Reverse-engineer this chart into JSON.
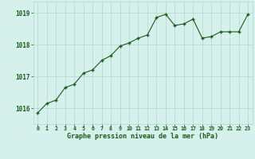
{
  "x": [
    0,
    1,
    2,
    3,
    4,
    5,
    6,
    7,
    8,
    9,
    10,
    11,
    12,
    13,
    14,
    15,
    16,
    17,
    18,
    19,
    20,
    21,
    22,
    23
  ],
  "y": [
    1015.85,
    1016.15,
    1016.25,
    1016.65,
    1016.75,
    1017.1,
    1017.2,
    1017.5,
    1017.65,
    1017.95,
    1018.05,
    1018.2,
    1018.3,
    1018.85,
    1018.95,
    1018.6,
    1018.65,
    1018.8,
    1018.2,
    1018.25,
    1018.4,
    1018.4,
    1018.4,
    1018.95
  ],
  "line_color": "#1a5c1a",
  "marker_color": "#1a5c1a",
  "bg_color": "#d6f0eb",
  "plot_bg_color": "#d6f0eb",
  "grid_color": "#b0d8cc",
  "xlabel": "Graphe pression niveau de la mer (hPa)",
  "xlabel_color": "#1a5c1a",
  "tick_label_color": "#1a5c1a",
  "ylim": [
    1015.5,
    1019.35
  ],
  "yticks": [
    1016,
    1017,
    1018,
    1019
  ],
  "xticks": [
    0,
    1,
    2,
    3,
    4,
    5,
    6,
    7,
    8,
    9,
    10,
    11,
    12,
    13,
    14,
    15,
    16,
    17,
    18,
    19,
    20,
    21,
    22,
    23
  ],
  "xtick_labels": [
    "0",
    "1",
    "2",
    "3",
    "4",
    "5",
    "6",
    "7",
    "8",
    "9",
    "10",
    "11",
    "12",
    "13",
    "14",
    "15",
    "16",
    "17",
    "18",
    "19",
    "20",
    "21",
    "22",
    "23"
  ]
}
